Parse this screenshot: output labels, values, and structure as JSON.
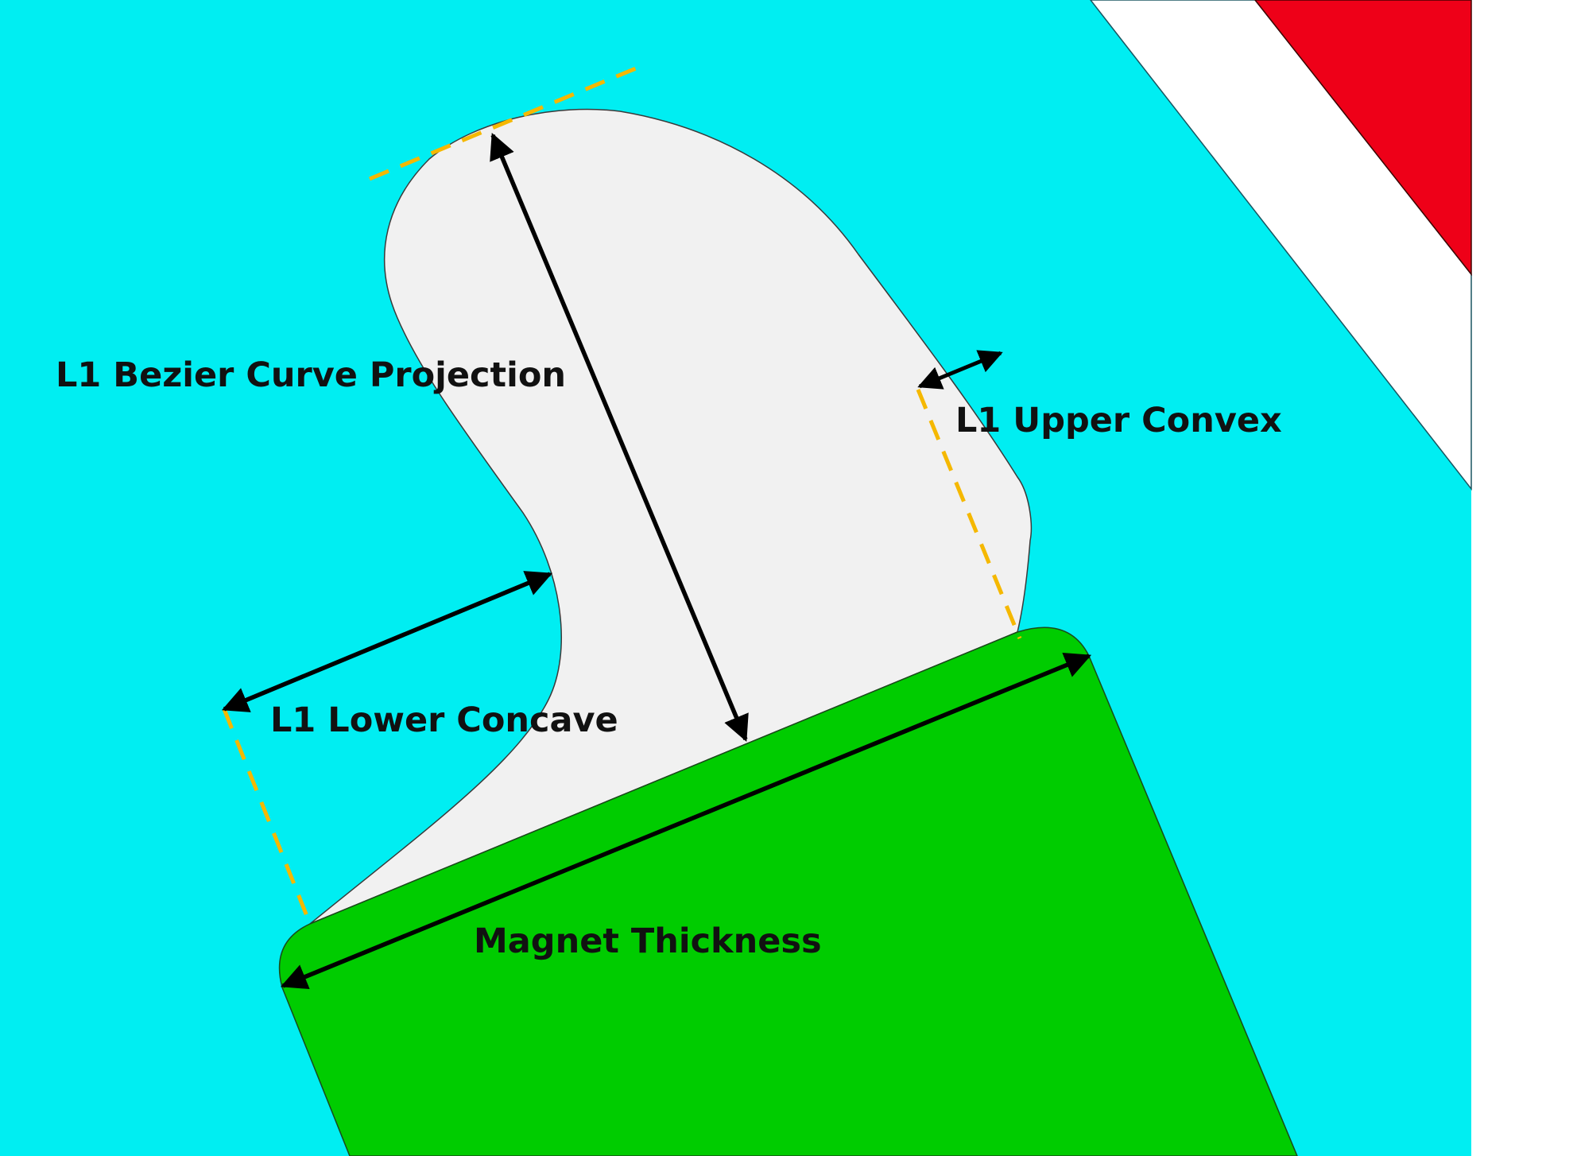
{
  "colors": {
    "air_region": "#00eef2",
    "air_pocket": "#f1f1f1",
    "magnet": "#00cc00",
    "coil": "#ee0018",
    "gap": "#ffffff",
    "dimension_arrow": "#000000",
    "construction_line": "#f5b800"
  },
  "labels": {
    "bezier_projection": "L1 Bezier Curve Projection",
    "upper_convex": "L1 Upper Convex",
    "lower_concave": "L1 Lower Concave",
    "magnet_thickness": "Magnet Thickness"
  }
}
